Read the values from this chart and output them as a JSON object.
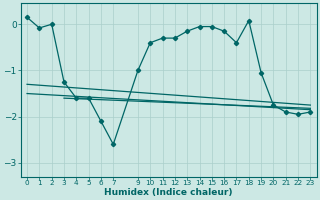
{
  "xlabel": "Humidex (Indice chaleur)",
  "bg_color": "#cce8e4",
  "line_color": "#006666",
  "grid_color": "#aacfcb",
  "xticks": [
    0,
    1,
    2,
    3,
    4,
    5,
    6,
    7,
    9,
    10,
    11,
    12,
    13,
    14,
    15,
    16,
    17,
    18,
    19,
    20,
    21,
    22,
    23
  ],
  "xtick_labels": [
    "0",
    "1",
    "2",
    "3",
    "4",
    "5",
    "6",
    "7",
    "9",
    "10",
    "11",
    "12",
    "13",
    "14",
    "15",
    "16",
    "17",
    "18",
    "19",
    "20",
    "21",
    "22",
    "23"
  ],
  "yticks": [
    0,
    -1,
    -2,
    -3
  ],
  "xlim": [
    -0.5,
    23.5
  ],
  "ylim": [
    -3.3,
    0.45
  ],
  "series1_x": [
    0,
    1,
    2,
    3,
    4,
    5,
    6,
    7,
    9,
    10,
    11,
    12,
    13,
    14,
    15,
    16,
    17,
    18,
    19,
    20,
    21,
    22,
    23
  ],
  "series1_y": [
    0.15,
    -0.08,
    0.0,
    -1.25,
    -1.6,
    -1.6,
    -2.1,
    -2.6,
    -1.0,
    -0.4,
    -0.3,
    -0.3,
    -0.15,
    -0.05,
    -0.05,
    -0.15,
    -0.4,
    0.08,
    -1.05,
    -1.75,
    -1.9,
    -1.95,
    -1.9
  ],
  "series2_x": [
    0,
    23
  ],
  "series2_y": [
    -1.3,
    -1.75
  ],
  "series3_x": [
    0,
    23
  ],
  "series3_y": [
    -1.5,
    -1.85
  ],
  "series4_x": [
    3,
    23
  ],
  "series4_y": [
    -1.6,
    -1.82
  ]
}
